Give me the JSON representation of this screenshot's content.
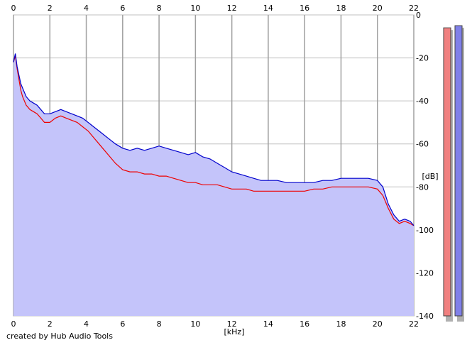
{
  "credit": "created by Hub Audio Tools",
  "chart_data": {
    "type": "line",
    "title": "",
    "xlabel": "[kHz]",
    "ylabel": "[dB]",
    "xlim": [
      0,
      22
    ],
    "ylim": [
      -140,
      0
    ],
    "x_ticks": [
      0,
      2,
      4,
      6,
      8,
      10,
      12,
      14,
      16,
      18,
      20,
      22
    ],
    "y_ticks": [
      0,
      -20,
      -40,
      -60,
      -80,
      -100,
      -120,
      -140
    ],
    "grid": true,
    "series": [
      {
        "color": "#0000cc",
        "x": [
          0,
          0.1,
          0.2,
          0.3,
          0.4,
          0.5,
          0.7,
          0.9,
          1.1,
          1.3,
          1.5,
          1.7,
          2,
          2.3,
          2.6,
          2.9,
          3.2,
          3.5,
          3.8,
          4.1,
          4.4,
          4.7,
          5,
          5.3,
          5.6,
          6,
          6.4,
          6.8,
          7.2,
          7.6,
          8,
          8.4,
          8.8,
          9.2,
          9.6,
          10,
          10.4,
          10.8,
          11.2,
          11.6,
          12,
          12.4,
          12.8,
          13.2,
          13.6,
          14,
          14.5,
          15,
          15.5,
          16,
          16.5,
          17,
          17.5,
          18,
          18.5,
          19,
          19.5,
          20,
          20.3,
          20.6,
          20.9,
          21.2,
          21.5,
          21.8,
          22
        ],
        "y": [
          -22,
          -18,
          -24,
          -28,
          -32,
          -34,
          -38,
          -40,
          -41,
          -42,
          -44,
          -46,
          -46,
          -45,
          -44,
          -45,
          -46,
          -47,
          -48,
          -50,
          -52,
          -54,
          -56,
          -58,
          -60,
          -62,
          -63,
          -62,
          -63,
          -62,
          -61,
          -62,
          -63,
          -64,
          -65,
          -64,
          -66,
          -67,
          -69,
          -71,
          -73,
          -74,
          -75,
          -76,
          -77,
          -77,
          -77,
          -78,
          -78,
          -78,
          -78,
          -77,
          -77,
          -76,
          -76,
          -76,
          -76,
          -77,
          -80,
          -88,
          -93,
          -96,
          -95,
          -96,
          -98
        ]
      },
      {
        "color": "#ee0000",
        "x": [
          0,
          0.1,
          0.2,
          0.3,
          0.4,
          0.5,
          0.7,
          0.9,
          1.1,
          1.3,
          1.5,
          1.7,
          2,
          2.3,
          2.6,
          2.9,
          3.2,
          3.5,
          3.8,
          4.1,
          4.4,
          4.7,
          5,
          5.3,
          5.6,
          6,
          6.4,
          6.8,
          7.2,
          7.6,
          8,
          8.4,
          8.8,
          9.2,
          9.6,
          10,
          10.4,
          10.8,
          11.2,
          11.6,
          12,
          12.4,
          12.8,
          13.2,
          13.6,
          14,
          14.5,
          15,
          15.5,
          16,
          16.5,
          17,
          17.5,
          18,
          18.5,
          19,
          19.5,
          20,
          20.3,
          20.6,
          20.9,
          21.2,
          21.5,
          21.8,
          22
        ],
        "y": [
          -22,
          -19,
          -25,
          -30,
          -35,
          -38,
          -42,
          -44,
          -45,
          -46,
          -48,
          -50,
          -50,
          -48,
          -47,
          -48,
          -49,
          -50,
          -52,
          -54,
          -57,
          -60,
          -63,
          -66,
          -69,
          -72,
          -73,
          -73,
          -74,
          -74,
          -75,
          -75,
          -76,
          -77,
          -78,
          -78,
          -79,
          -79,
          -79,
          -80,
          -81,
          -81,
          -81,
          -82,
          -82,
          -82,
          -82,
          -82,
          -82,
          -82,
          -81,
          -81,
          -80,
          -80,
          -80,
          -80,
          -80,
          -81,
          -84,
          -90,
          -95,
          -97,
          -96,
          -97,
          -98
        ]
      }
    ],
    "level_meters": [
      {
        "color": "#f08080",
        "value": -6
      },
      {
        "color": "#8080e8",
        "value": -5
      }
    ]
  }
}
